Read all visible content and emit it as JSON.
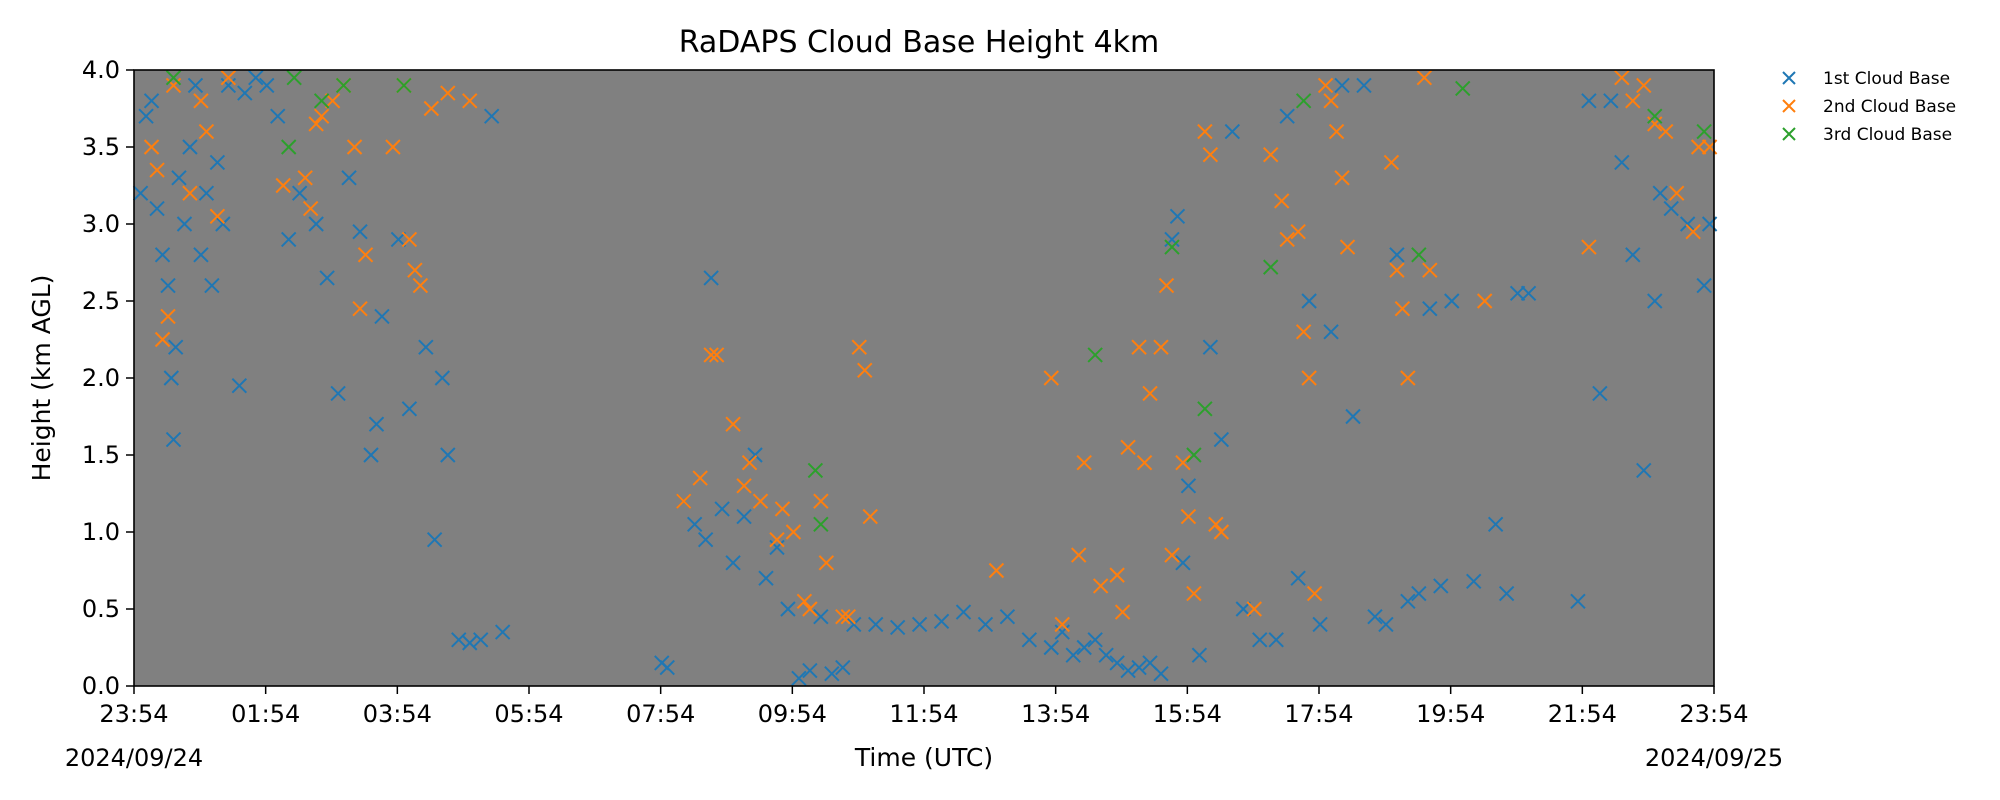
{
  "chart_data": {
    "type": "scatter",
    "title": "RaDAPS Cloud Base Height 4km",
    "xlabel": "Time (UTC)",
    "ylabel": "Height (km AGL)",
    "x_ticks": [
      "23:54",
      "01:54",
      "03:54",
      "05:54",
      "07:54",
      "09:54",
      "11:54",
      "13:54",
      "15:54",
      "17:54",
      "19:54",
      "21:54",
      "23:54"
    ],
    "date_labels": {
      "start": "2024/09/24",
      "end": "2024/09/25"
    },
    "xlim": [
      "2024-09-24T23:54",
      "2024-09-25T23:54"
    ],
    "ylim": [
      0,
      4
    ],
    "y_ticks": [
      "0.0",
      "0.5",
      "1.0",
      "1.5",
      "2.0",
      "2.5",
      "3.0",
      "3.5",
      "4.0"
    ],
    "background_color": "#808080",
    "marker": "x",
    "legend_position": "upper-right-outside",
    "series": [
      {
        "name": "1st Cloud Base",
        "color": "#1f77b4",
        "points": [
          [
            "00:00",
            3.2
          ],
          [
            "00:05",
            3.7
          ],
          [
            "00:10",
            3.8
          ],
          [
            "00:15",
            3.1
          ],
          [
            "00:20",
            2.8
          ],
          [
            "00:25",
            2.6
          ],
          [
            "00:28",
            2.0
          ],
          [
            "00:30",
            1.6
          ],
          [
            "00:32",
            2.2
          ],
          [
            "00:35",
            3.3
          ],
          [
            "00:40",
            3.0
          ],
          [
            "00:45",
            3.5
          ],
          [
            "00:50",
            3.9
          ],
          [
            "00:55",
            2.8
          ],
          [
            "01:00",
            3.2
          ],
          [
            "01:05",
            2.6
          ],
          [
            "01:10",
            3.4
          ],
          [
            "01:15",
            3.0
          ],
          [
            "01:20",
            3.9
          ],
          [
            "01:30",
            1.95
          ],
          [
            "01:35",
            3.85
          ],
          [
            "01:45",
            3.95
          ],
          [
            "01:55",
            3.9
          ],
          [
            "02:05",
            3.7
          ],
          [
            "02:15",
            2.9
          ],
          [
            "02:25",
            3.2
          ],
          [
            "02:40",
            3.0
          ],
          [
            "02:50",
            2.65
          ],
          [
            "03:00",
            1.9
          ],
          [
            "03:10",
            3.3
          ],
          [
            "03:20",
            2.95
          ],
          [
            "03:30",
            1.5
          ],
          [
            "03:35",
            1.7
          ],
          [
            "03:40",
            2.4
          ],
          [
            "03:55",
            2.9
          ],
          [
            "04:05",
            1.8
          ],
          [
            "04:20",
            2.2
          ],
          [
            "04:28",
            0.95
          ],
          [
            "04:35",
            2.0
          ],
          [
            "04:40",
            1.5
          ],
          [
            "04:50",
            0.3
          ],
          [
            "05:00",
            0.28
          ],
          [
            "05:10",
            0.3
          ],
          [
            "05:20",
            3.7
          ],
          [
            "05:30",
            0.35
          ],
          [
            "07:55",
            0.15
          ],
          [
            "08:00",
            0.12
          ],
          [
            "08:15",
            1.2
          ],
          [
            "08:25",
            1.05
          ],
          [
            "08:35",
            0.95
          ],
          [
            "08:40",
            2.65
          ],
          [
            "08:50",
            1.15
          ],
          [
            "09:00",
            0.8
          ],
          [
            "09:10",
            1.1
          ],
          [
            "09:20",
            1.5
          ],
          [
            "09:30",
            0.7
          ],
          [
            "09:40",
            0.9
          ],
          [
            "09:50",
            0.5
          ],
          [
            "10:00",
            0.05
          ],
          [
            "10:10",
            0.1
          ],
          [
            "10:20",
            0.45
          ],
          [
            "10:30",
            0.08
          ],
          [
            "10:40",
            0.12
          ],
          [
            "10:50",
            0.4
          ],
          [
            "11:10",
            0.4
          ],
          [
            "11:30",
            0.38
          ],
          [
            "11:50",
            0.4
          ],
          [
            "12:10",
            0.42
          ],
          [
            "12:30",
            0.48
          ],
          [
            "12:50",
            0.4
          ],
          [
            "13:10",
            0.45
          ],
          [
            "13:30",
            0.3
          ],
          [
            "13:50",
            0.25
          ],
          [
            "14:00",
            0.35
          ],
          [
            "14:10",
            0.2
          ],
          [
            "14:20",
            0.25
          ],
          [
            "14:30",
            0.3
          ],
          [
            "14:40",
            0.2
          ],
          [
            "14:50",
            0.15
          ],
          [
            "15:00",
            0.1
          ],
          [
            "15:10",
            0.12
          ],
          [
            "15:20",
            0.15
          ],
          [
            "15:30",
            0.08
          ],
          [
            "15:40",
            2.9
          ],
          [
            "15:45",
            3.05
          ],
          [
            "15:50",
            0.8
          ],
          [
            "15:55",
            1.3
          ],
          [
            "16:05",
            0.2
          ],
          [
            "16:15",
            2.2
          ],
          [
            "16:25",
            1.6
          ],
          [
            "16:35",
            3.6
          ],
          [
            "16:45",
            0.5
          ],
          [
            "17:00",
            0.3
          ],
          [
            "17:15",
            0.3
          ],
          [
            "17:25",
            3.7
          ],
          [
            "17:35",
            0.7
          ],
          [
            "17:45",
            2.5
          ],
          [
            "17:55",
            0.4
          ],
          [
            "18:05",
            2.3
          ],
          [
            "18:15",
            3.9
          ],
          [
            "18:25",
            1.75
          ],
          [
            "18:35",
            3.9
          ],
          [
            "18:45",
            0.45
          ],
          [
            "18:55",
            0.4
          ],
          [
            "19:05",
            2.8
          ],
          [
            "19:15",
            0.55
          ],
          [
            "19:25",
            0.6
          ],
          [
            "19:35",
            2.45
          ],
          [
            "19:45",
            0.65
          ],
          [
            "19:55",
            2.5
          ],
          [
            "20:15",
            0.68
          ],
          [
            "20:35",
            1.05
          ],
          [
            "20:45",
            0.6
          ],
          [
            "20:55",
            2.55
          ],
          [
            "21:05",
            2.55
          ],
          [
            "21:50",
            0.55
          ],
          [
            "22:00",
            3.8
          ],
          [
            "22:10",
            1.9
          ],
          [
            "22:20",
            3.8
          ],
          [
            "22:30",
            3.4
          ],
          [
            "22:40",
            2.8
          ],
          [
            "22:50",
            1.4
          ],
          [
            "23:00",
            2.5
          ],
          [
            "23:05",
            3.2
          ],
          [
            "23:15",
            3.1
          ],
          [
            "23:30",
            3.0
          ],
          [
            "23:45",
            2.6
          ],
          [
            "23:50",
            3.0
          ]
        ]
      },
      {
        "name": "2nd Cloud Base",
        "color": "#ff7f0e",
        "points": [
          [
            "00:10",
            3.5
          ],
          [
            "00:15",
            3.35
          ],
          [
            "00:20",
            2.25
          ],
          [
            "00:25",
            2.4
          ],
          [
            "00:30",
            3.9
          ],
          [
            "00:45",
            3.2
          ],
          [
            "00:55",
            3.8
          ],
          [
            "01:00",
            3.6
          ],
          [
            "01:10",
            3.05
          ],
          [
            "01:20",
            3.95
          ],
          [
            "02:10",
            3.25
          ],
          [
            "02:30",
            3.3
          ],
          [
            "02:35",
            3.1
          ],
          [
            "02:40",
            3.65
          ],
          [
            "02:45",
            3.7
          ],
          [
            "02:55",
            3.8
          ],
          [
            "03:05",
            3.9
          ],
          [
            "03:15",
            3.5
          ],
          [
            "03:20",
            2.45
          ],
          [
            "03:25",
            2.8
          ],
          [
            "03:50",
            3.5
          ],
          [
            "04:00",
            3.9
          ],
          [
            "04:05",
            2.9
          ],
          [
            "04:10",
            2.7
          ],
          [
            "04:15",
            2.6
          ],
          [
            "04:25",
            3.75
          ],
          [
            "04:40",
            3.85
          ],
          [
            "05:00",
            3.8
          ],
          [
            "08:15",
            1.2
          ],
          [
            "08:30",
            1.35
          ],
          [
            "08:40",
            2.15
          ],
          [
            "08:45",
            2.15
          ],
          [
            "09:00",
            1.7
          ],
          [
            "09:10",
            1.3
          ],
          [
            "09:15",
            1.45
          ],
          [
            "09:25",
            1.2
          ],
          [
            "09:40",
            0.95
          ],
          [
            "09:45",
            1.15
          ],
          [
            "09:55",
            1.0
          ],
          [
            "10:05",
            0.55
          ],
          [
            "10:10",
            0.5
          ],
          [
            "10:20",
            1.2
          ],
          [
            "10:25",
            0.8
          ],
          [
            "10:40",
            0.45
          ],
          [
            "10:45",
            0.45
          ],
          [
            "10:55",
            2.2
          ],
          [
            "11:00",
            2.05
          ],
          [
            "11:05",
            1.1
          ],
          [
            "13:00",
            0.75
          ],
          [
            "13:50",
            2.0
          ],
          [
            "14:00",
            0.4
          ],
          [
            "14:15",
            0.85
          ],
          [
            "14:20",
            1.45
          ],
          [
            "14:35",
            0.65
          ],
          [
            "14:50",
            0.72
          ],
          [
            "14:55",
            0.48
          ],
          [
            "15:00",
            1.55
          ],
          [
            "15:10",
            2.2
          ],
          [
            "15:15",
            1.45
          ],
          [
            "15:20",
            1.9
          ],
          [
            "15:30",
            2.2
          ],
          [
            "15:35",
            2.6
          ],
          [
            "15:40",
            0.85
          ],
          [
            "15:50",
            1.45
          ],
          [
            "15:55",
            1.1
          ],
          [
            "16:00",
            0.6
          ],
          [
            "16:10",
            3.6
          ],
          [
            "16:15",
            3.45
          ],
          [
            "16:20",
            1.05
          ],
          [
            "16:25",
            1.0
          ],
          [
            "16:55",
            0.5
          ],
          [
            "17:10",
            3.45
          ],
          [
            "17:20",
            3.15
          ],
          [
            "17:25",
            2.9
          ],
          [
            "17:35",
            2.95
          ],
          [
            "17:40",
            2.3
          ],
          [
            "17:45",
            2.0
          ],
          [
            "17:50",
            0.6
          ],
          [
            "18:00",
            3.9
          ],
          [
            "18:05",
            3.8
          ],
          [
            "18:10",
            3.6
          ],
          [
            "18:15",
            3.3
          ],
          [
            "18:20",
            2.85
          ],
          [
            "19:00",
            3.4
          ],
          [
            "19:05",
            2.7
          ],
          [
            "19:10",
            2.45
          ],
          [
            "19:15",
            2.0
          ],
          [
            "19:30",
            3.95
          ],
          [
            "19:35",
            2.7
          ],
          [
            "20:25",
            2.5
          ],
          [
            "22:00",
            2.85
          ],
          [
            "22:30",
            3.95
          ],
          [
            "22:40",
            3.8
          ],
          [
            "22:50",
            3.9
          ],
          [
            "23:00",
            3.65
          ],
          [
            "23:10",
            3.6
          ],
          [
            "23:20",
            3.2
          ],
          [
            "23:35",
            2.95
          ],
          [
            "23:40",
            3.5
          ],
          [
            "23:50",
            3.5
          ]
        ]
      },
      {
        "name": "3rd Cloud Base",
        "color": "#2ca02c",
        "points": [
          [
            "00:30",
            3.95
          ],
          [
            "02:15",
            3.5
          ],
          [
            "02:20",
            3.95
          ],
          [
            "02:45",
            3.8
          ],
          [
            "03:05",
            3.9
          ],
          [
            "04:00",
            3.9
          ],
          [
            "10:15",
            1.4
          ],
          [
            "10:20",
            1.05
          ],
          [
            "14:30",
            2.15
          ],
          [
            "15:40",
            2.85
          ],
          [
            "16:00",
            1.5
          ],
          [
            "16:10",
            1.8
          ],
          [
            "17:10",
            2.72
          ],
          [
            "17:40",
            3.8
          ],
          [
            "19:25",
            2.8
          ],
          [
            "20:05",
            3.88
          ],
          [
            "23:00",
            3.7
          ],
          [
            "23:45",
            3.6
          ]
        ]
      }
    ]
  }
}
